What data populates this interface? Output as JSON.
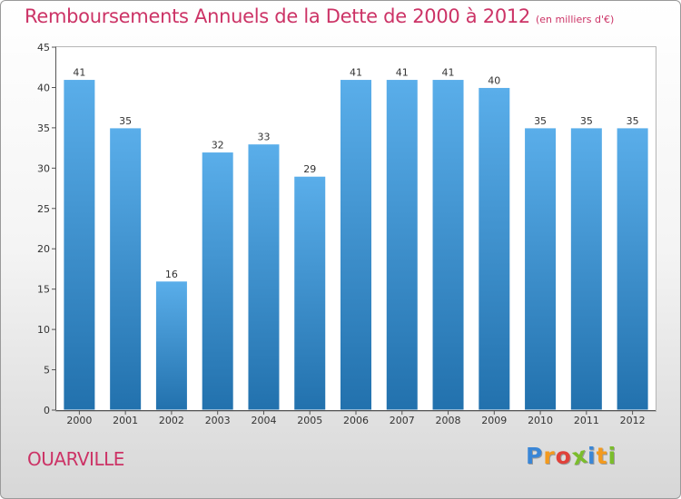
{
  "chart_data": {
    "type": "bar",
    "title": "Remboursements Annuels de la Dette de 2000 à 2012",
    "subtitle": "(en milliers d'€)",
    "xlabel": "",
    "ylabel": "",
    "categories": [
      "2000",
      "2001",
      "2002",
      "2003",
      "2004",
      "2005",
      "2006",
      "2007",
      "2008",
      "2009",
      "2010",
      "2011",
      "2012"
    ],
    "values": [
      41,
      35,
      16,
      32,
      33,
      29,
      41,
      41,
      41,
      40,
      35,
      35,
      35
    ],
    "ylim": [
      0,
      45
    ],
    "yticks": [
      0,
      5,
      10,
      15,
      20,
      25,
      30,
      35,
      40,
      45
    ],
    "grid": false,
    "data_labels": true,
    "bar_color_top": "#5aaeea",
    "bar_color_bottom": "#2271ad"
  },
  "commune_name": "OUARVILLE",
  "logo": {
    "letters": [
      "P",
      "r",
      "o",
      "x",
      "i",
      "t",
      "i"
    ],
    "colors": [
      "#3a86d6",
      "#f39a1e",
      "#e0413a",
      "#7bbd2c",
      "#3a86d6",
      "#f39a1e",
      "#7bbd2c"
    ]
  },
  "colors": {
    "title": "#cc3366",
    "axis": "#555555",
    "label": "#333333"
  }
}
